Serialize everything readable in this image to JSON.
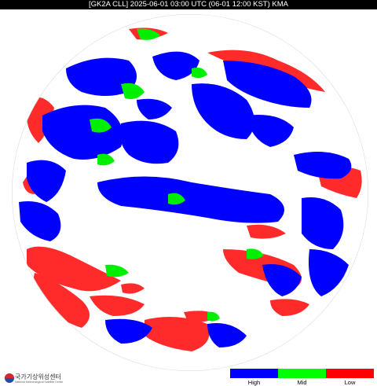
{
  "header": {
    "title": "[GK2A CLL] 2025-06-01 03:00 UTC (06-01 12:00 KST) KMA"
  },
  "logo": {
    "name_ko": "국가기상위성센터",
    "name_en": "National Meteorological Satellite Center"
  },
  "legend": {
    "items": [
      {
        "label": "High",
        "color": "#0000ff"
      },
      {
        "label": "Mid",
        "color": "#00ff00"
      },
      {
        "label": "Low",
        "color": "#ff0000"
      }
    ]
  },
  "colors": {
    "high_cloud": "#0000ff",
    "mid_cloud": "#00ff00",
    "low_cloud": "#ff0000",
    "clear": "#ffffff"
  }
}
